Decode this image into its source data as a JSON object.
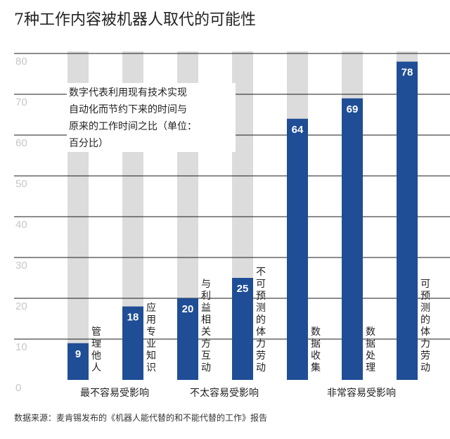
{
  "chart_data": {
    "type": "bar",
    "title": "7种工作内容被机器人取代的可能性",
    "categories": [
      "管理他人",
      "应用专业知识",
      "与利益相关方互动",
      "不可预测的体力劳动",
      "数据收集",
      "数据处理",
      "可预测的体力劳动"
    ],
    "values": [
      9,
      18,
      20,
      25,
      64,
      69,
      78
    ],
    "groups": [
      {
        "label": "最不容易受影响",
        "members": [
          0,
          1
        ]
      },
      {
        "label": "不太容易受影响",
        "members": [
          2,
          3
        ]
      },
      {
        "label": "非常容易受影响",
        "members": [
          4,
          5,
          6
        ]
      }
    ],
    "yticks": [
      0,
      10,
      20,
      30,
      40,
      50,
      60,
      70,
      80
    ],
    "ylim": [
      0,
      80
    ],
    "grid": true,
    "note_lines": [
      "数字代表利用现有技术实现",
      "自动化而节约下来的时间与",
      "原来的工作时间之比（单位：",
      "百分比）"
    ],
    "source": "数据来源：麦肯锡发布的《机器人能代替的和不能代替的工作》报告",
    "colors": {
      "bar": "#1f4e96",
      "background_bar": "#dcdcdc",
      "grid": "#1a1a1a",
      "tick": "#c7c7c7"
    }
  }
}
